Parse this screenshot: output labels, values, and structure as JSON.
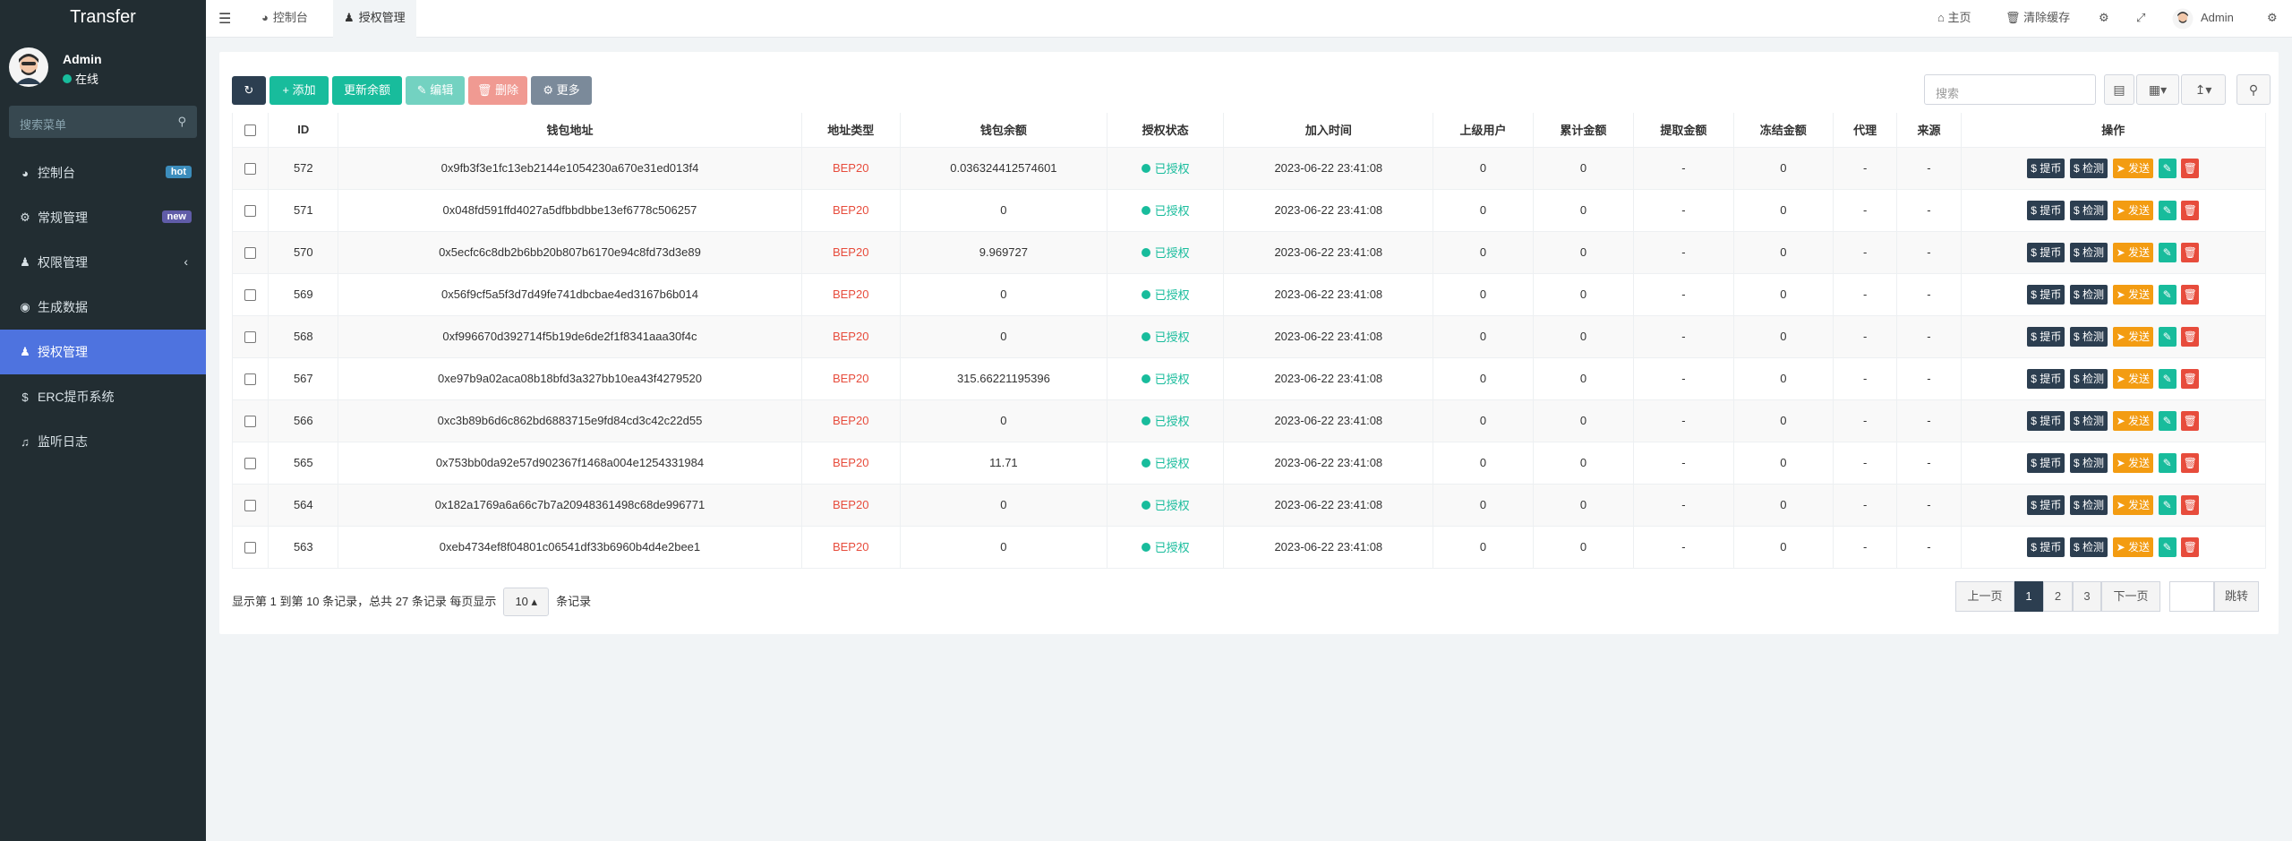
{
  "app": {
    "title": "Transfer"
  },
  "user": {
    "name": "Admin",
    "status": "在线"
  },
  "sidebar": {
    "search_placeholder": "搜索菜单",
    "items": [
      {
        "label": "控制台",
        "icon": "dashboard-icon",
        "badge": "hot",
        "badge_color": "#3c8dbc"
      },
      {
        "label": "常规管理",
        "icon": "cogs-icon",
        "badge": "new",
        "badge_color": "#605ca8"
      },
      {
        "label": "权限管理",
        "icon": "group-icon",
        "arrow": "‹"
      },
      {
        "label": "生成数据",
        "icon": "circle-icon"
      },
      {
        "label": "授权管理",
        "icon": "users-icon",
        "active": true
      },
      {
        "label": "ERC提币系统",
        "icon": "dollar-icon"
      },
      {
        "label": "监听日志",
        "icon": "music-icon"
      }
    ]
  },
  "topbar": {
    "tabs": [
      {
        "label": "控制台",
        "icon": "dashboard-icon"
      },
      {
        "label": "授权管理",
        "icon": "users-icon",
        "active": true
      }
    ],
    "right": {
      "home": "主页",
      "clear_cache": "清除缓存",
      "admin": "Admin"
    }
  },
  "toolbar": {
    "add": "添加",
    "update_balance": "更新余额",
    "edit": "编辑",
    "delete": "删除",
    "more": "更多",
    "search_placeholder": "搜索"
  },
  "colors": {
    "primary": "#2c3e50",
    "success": "#18bc9c",
    "warning": "#f39c12",
    "danger": "#e74c3c",
    "sidebar_bg": "#222d32",
    "active_menu": "#4e73df"
  },
  "table": {
    "columns": [
      "ID",
      "钱包地址",
      "地址类型",
      "钱包余额",
      "授权状态",
      "加入时间",
      "上级用户",
      "累计金额",
      "提取金额",
      "冻结金额",
      "代理",
      "来源",
      "操作"
    ],
    "actions": {
      "withdraw": "提币",
      "check": "检测",
      "send": "发送"
    },
    "rows": [
      {
        "id": "572",
        "address": "0x9fb3f3e1fc13eb2144e1054230a670e31ed013f4",
        "type": "BEP20",
        "balance": "0.036324412574601",
        "status": "已授权",
        "time": "2023-06-22 23:41:08",
        "parent": "0",
        "total": "0",
        "withdrawn": "-",
        "frozen": "0",
        "agent": "-",
        "source": "-"
      },
      {
        "id": "571",
        "address": "0x048fd591ffd4027a5dfbbdbbe13ef6778c506257",
        "type": "BEP20",
        "balance": "0",
        "status": "已授权",
        "time": "2023-06-22 23:41:08",
        "parent": "0",
        "total": "0",
        "withdrawn": "-",
        "frozen": "0",
        "agent": "-",
        "source": "-"
      },
      {
        "id": "570",
        "address": "0x5ecfc6c8db2b6bb20b807b6170e94c8fd73d3e89",
        "type": "BEP20",
        "balance": "9.969727",
        "status": "已授权",
        "time": "2023-06-22 23:41:08",
        "parent": "0",
        "total": "0",
        "withdrawn": "-",
        "frozen": "0",
        "agent": "-",
        "source": "-"
      },
      {
        "id": "569",
        "address": "0x56f9cf5a5f3d7d49fe741dbcbae4ed3167b6b014",
        "type": "BEP20",
        "balance": "0",
        "status": "已授权",
        "time": "2023-06-22 23:41:08",
        "parent": "0",
        "total": "0",
        "withdrawn": "-",
        "frozen": "0",
        "agent": "-",
        "source": "-"
      },
      {
        "id": "568",
        "address": "0xf996670d392714f5b19de6de2f1f8341aaa30f4c",
        "type": "BEP20",
        "balance": "0",
        "status": "已授权",
        "time": "2023-06-22 23:41:08",
        "parent": "0",
        "total": "0",
        "withdrawn": "-",
        "frozen": "0",
        "agent": "-",
        "source": "-"
      },
      {
        "id": "567",
        "address": "0xe97b9a02aca08b18bfd3a327bb10ea43f4279520",
        "type": "BEP20",
        "balance": "315.66221195396",
        "status": "已授权",
        "time": "2023-06-22 23:41:08",
        "parent": "0",
        "total": "0",
        "withdrawn": "-",
        "frozen": "0",
        "agent": "-",
        "source": "-"
      },
      {
        "id": "566",
        "address": "0xc3b89b6d6c862bd6883715e9fd84cd3c42c22d55",
        "type": "BEP20",
        "balance": "0",
        "status": "已授权",
        "time": "2023-06-22 23:41:08",
        "parent": "0",
        "total": "0",
        "withdrawn": "-",
        "frozen": "0",
        "agent": "-",
        "source": "-"
      },
      {
        "id": "565",
        "address": "0x753bb0da92e57d902367f1468a004e1254331984",
        "type": "BEP20",
        "balance": "11.71",
        "status": "已授权",
        "time": "2023-06-22 23:41:08",
        "parent": "0",
        "total": "0",
        "withdrawn": "-",
        "frozen": "0",
        "agent": "-",
        "source": "-"
      },
      {
        "id": "564",
        "address": "0x182a1769a6a66c7b7a20948361498c68de996771",
        "type": "BEP20",
        "balance": "0",
        "status": "已授权",
        "time": "2023-06-22 23:41:08",
        "parent": "0",
        "total": "0",
        "withdrawn": "-",
        "frozen": "0",
        "agent": "-",
        "source": "-"
      },
      {
        "id": "563",
        "address": "0xeb4734ef8f04801c06541df33b6960b4d4e2bee1",
        "type": "BEP20",
        "balance": "0",
        "status": "已授权",
        "time": "2023-06-22 23:41:08",
        "parent": "0",
        "total": "0",
        "withdrawn": "-",
        "frozen": "0",
        "agent": "-",
        "source": "-"
      }
    ]
  },
  "pagination": {
    "info_prefix": "显示第 1 到第 10 条记录，总共 27 条记录 每页显示",
    "page_size": "10",
    "info_suffix": "条记录",
    "prev": "上一页",
    "pages": [
      "1",
      "2",
      "3"
    ],
    "current": "1",
    "next": "下一页",
    "jump": "跳转"
  }
}
